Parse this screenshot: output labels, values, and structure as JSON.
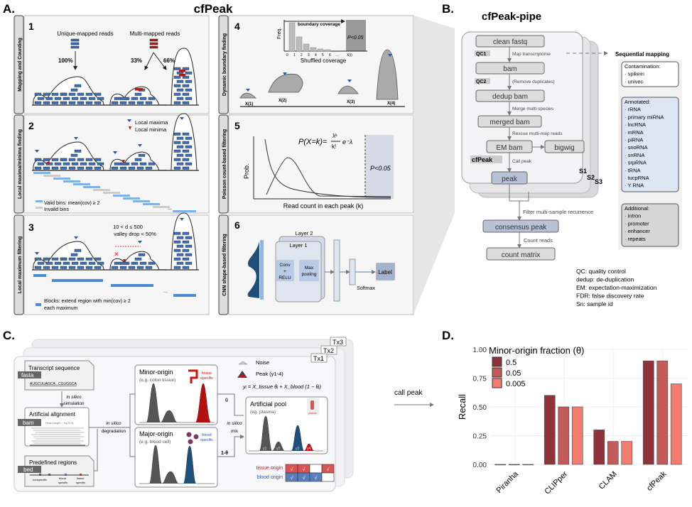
{
  "panelA": {
    "label": "A.",
    "title": "cfPeak",
    "step1": {
      "num": "1",
      "side": "Mapping and Counting",
      "unique": "Unique-mapped reads",
      "multi": "Multi-mapped reads",
      "p100": "100%",
      "p33": "33%",
      "p66": "66%"
    },
    "step2": {
      "num": "2",
      "side": "Local maxima/minima finding",
      "maxima": "Local maxima",
      "minima": "Local minima",
      "valid": "Valid bins: mean(cov) ≥ 2",
      "invalid": "Invalid bins",
      "dots": "..."
    },
    "step3": {
      "num": "3",
      "side": "Local maximum filtering",
      "cond1": "10 < d ≤ 500",
      "cond2": "valley drop < 50%",
      "blocks1": "Blocks: extend region with min(cov) ≥ 2",
      "blocks2": "each maximum",
      "dots": "..."
    },
    "step4": {
      "num": "4",
      "side": "Dynamic boundary finding",
      "boundary": "boundary coverage",
      "freq": "Freq.",
      "pval": "P<0.05",
      "ticks": [
        "0",
        "1",
        "2",
        "3",
        "4",
        "5",
        "6",
        "...",
        "X(i)"
      ],
      "xlabel": "Shuffled coverage",
      "x1": "X(1)",
      "x2": "X(2)",
      "x3": "X(3)",
      "x4": "X(4)"
    },
    "step5": {
      "num": "5",
      "side": "Poisson count-based filtering",
      "formula_left": "P(X=k)=",
      "formula_num": "λᵏ",
      "formula_den": "k!",
      "formula_right": "e⁻λ",
      "ylabel": "Prob.",
      "pval": "P<0.05",
      "xlabel": "Read count in each peak (k)"
    },
    "step6": {
      "num": "6",
      "side": "CNN shape-based filtering",
      "layer2": "Layer 2",
      "layer1": "Layer 1",
      "conv1": "Conv",
      "conv2": "+",
      "conv3": "RELU",
      "pool1": "Max",
      "pool2": "pooling",
      "softmax": "Softmax",
      "label": "Label"
    }
  },
  "panelB": {
    "label": "B.",
    "title": "cfPeak-pipe",
    "nodes": {
      "clean_fastq": "clean fastq",
      "bam": "bam",
      "dedup_bam": "dedup bam",
      "merged_bam": "merged bam",
      "em_bam": "EM bam",
      "bigwig": "bigwig",
      "peak": "peak",
      "consensus_peak": "consensus peak",
      "count_matrix": "count matrix"
    },
    "tags": {
      "qc1": "QC1",
      "qc2": "QC2",
      "cfpeak": "cfPeak"
    },
    "edges": {
      "map": "Map transcriptome",
      "dedup": "(Remove duplicates)",
      "merge": "Merge multi-species",
      "rescue": "Rescue multi-map reads",
      "call": "Call peak",
      "filter": "Filter multi-sample recurrence",
      "count": "Count reads"
    },
    "samples": [
      "S1",
      "S2",
      "S3"
    ],
    "sequential": {
      "title": "Sequential mapping",
      "contamination": {
        "title": "Contamination:",
        "items": [
          "spikein",
          "univec"
        ]
      },
      "annotated": {
        "title": "Annotated:",
        "items": [
          "rRNA",
          "primary miRNA",
          "lncRNA",
          "mRNA",
          "piRNA",
          "snoRNA",
          "snRNA",
          "srpRNA",
          "tRNA",
          "tucpRNA",
          "Y RNA"
        ]
      },
      "additional": {
        "title": "Additional:",
        "items": [
          "intron",
          "promoter",
          "enhancer",
          "repeats"
        ]
      }
    },
    "legend": [
      "QC: quality control",
      "dedup: de-duplication",
      "EM: expectation-maximization",
      "FDR: false discovery rate",
      "Sn: sample id"
    ]
  },
  "panelC": {
    "label": "C.",
    "tx": [
      "Tx3",
      "Tx2",
      "Tx1"
    ],
    "transcript": {
      "title": "Transcript sequence",
      "tag": "fasta",
      "seq": "AUGCUUAGCA...CGUGGCA"
    },
    "simulation1": "in silico",
    "simulation2": "simulation",
    "alignment": {
      "title": "Artificial alignment",
      "tag": "bam",
      "note": "Read length ~ N(20,5)"
    },
    "regions": {
      "title": "Predefined regions",
      "tag": "bed",
      "types": [
        "nonspecific",
        "blood",
        "specific",
        "tissue",
        "specific"
      ]
    },
    "degradation1": "in silico",
    "degradation2": "degradation",
    "minor": {
      "title": "Minor-origin",
      "sub": "(e.g. colon tissue)",
      "tag1": "tissue",
      "tag2": "specific"
    },
    "major": {
      "title": "Major-origin",
      "sub": "(e.g. blood cell)",
      "tag1": "blood",
      "tag2": "specific"
    },
    "theta": "θ",
    "one_minus_theta": "1-θ",
    "mix1": "in silico",
    "mix2": "mix",
    "noise": "Noise",
    "peak": "Peak (y1-4)",
    "equation": "yᵢ = X_tissue θᵢ + X_blood (1 − θᵢ)",
    "pool": {
      "title": "Artificial pool",
      "sub": "(eg. plasma)",
      "icon_label": "plasma",
      "peaks": [
        "y1",
        "y2",
        "y3",
        "y4"
      ]
    },
    "origin_table": {
      "tissue_label": "tissue origin",
      "blood_label": "blood origin",
      "tissue": [
        "√",
        "√",
        "",
        "√"
      ],
      "blood": [
        "√",
        "√",
        "√",
        ""
      ]
    },
    "call_peak": "call peak",
    "colors": {
      "tissue": "#c81414",
      "blood": "#1f4e79",
      "tissue_cell": "#d9534f",
      "blood_cell": "#5a7fbf"
    }
  },
  "panelD": {
    "label": "D."
  },
  "chart_data": {
    "type": "bar",
    "categories": [
      "Piranha",
      "CLIPper",
      "CLAM",
      "cfPeak"
    ],
    "series": [
      {
        "name": "0.5",
        "values": [
          0.0,
          0.6,
          0.3,
          0.9
        ],
        "color": "#8e3339"
      },
      {
        "name": "0.05",
        "values": [
          0.0,
          0.5,
          0.2,
          0.9
        ],
        "color": "#c55a5a"
      },
      {
        "name": "0.005",
        "values": [
          0.0,
          0.5,
          0.2,
          0.7
        ],
        "color": "#f47c6e"
      }
    ],
    "legend_title": "Minor-origin fraction (θ)",
    "legend_position": "top-left",
    "xlabel": "",
    "ylabel": "Recall",
    "ylim": [
      0,
      1.0
    ],
    "yticks": [
      "0.00",
      "0.25",
      "0.50",
      "0.75",
      "1.00"
    ],
    "grid": true
  }
}
